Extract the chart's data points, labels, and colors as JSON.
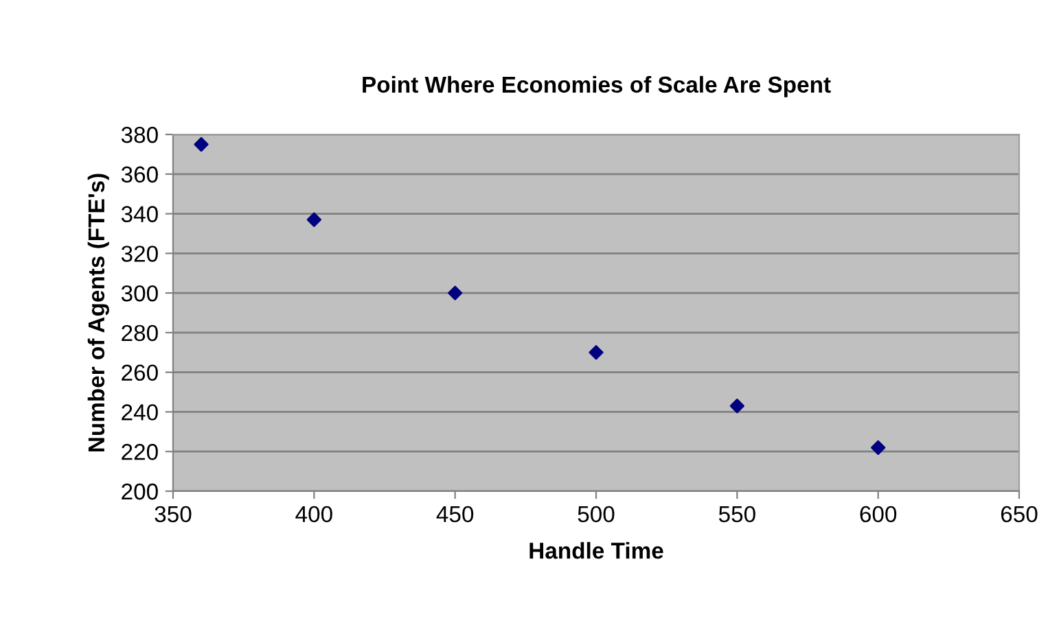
{
  "chart_data": {
    "type": "scatter",
    "title": "Point Where Economies of Scale Are Spent",
    "xlabel": "Handle Time",
    "ylabel": "Number of Agents (FTE's)",
    "x": [
      360,
      400,
      450,
      500,
      550,
      600
    ],
    "series": [
      {
        "color": "#000080",
        "values": [
          375,
          337,
          300,
          270,
          243,
          222
        ]
      }
    ],
    "marker": "diamond",
    "xlim": [
      350,
      650
    ],
    "xticks": [
      350,
      400,
      450,
      500,
      550,
      600,
      650
    ],
    "ylim": [
      200,
      380
    ],
    "yticks": [
      200,
      220,
      240,
      260,
      280,
      300,
      320,
      340,
      360,
      380
    ],
    "grid": "y",
    "legend": false
  }
}
